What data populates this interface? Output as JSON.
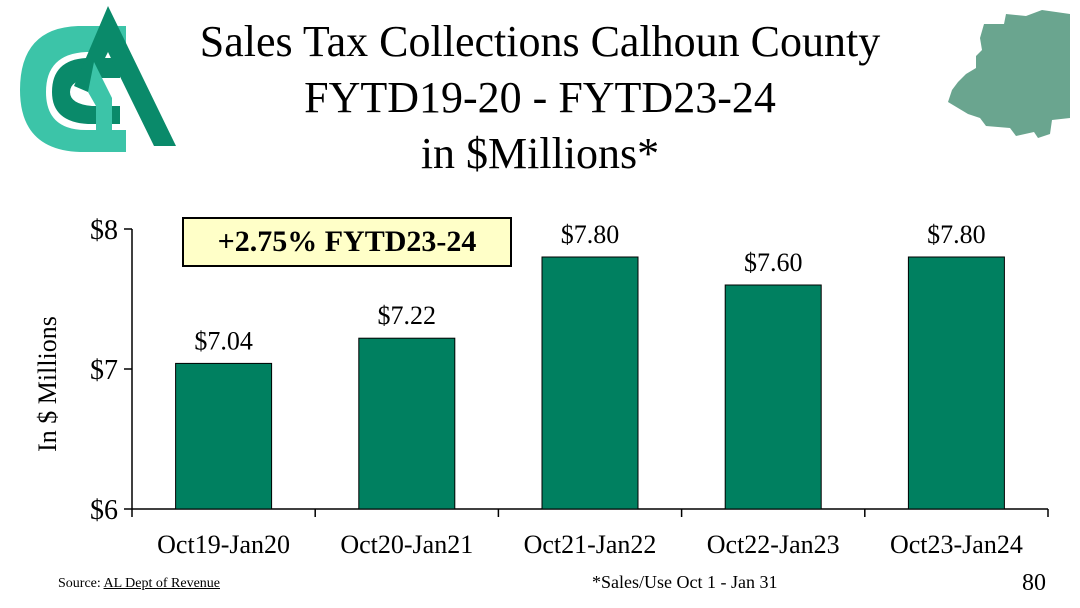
{
  "title": {
    "line1": "Sales Tax Collections Calhoun County",
    "line2": "FYTD19-20 - FYTD23-24",
    "line3": "in $Millions*"
  },
  "callout": "+2.75% FYTD23-24",
  "footer": {
    "source_prefix": "Source: ",
    "source_link": "AL Dept of Revenue",
    "note": "*Sales/Use Oct 1 - Jan 31",
    "page_number": "80"
  },
  "colors": {
    "bar": "#008060",
    "logo_dark": "#0a8a6a",
    "logo_light": "#3cc4a8",
    "county": "#6aa58f",
    "callout_bg": "#ffffc8"
  },
  "icons": [
    "logo-icon",
    "county-map-icon"
  ],
  "chart_data": {
    "type": "bar",
    "categories": [
      "Oct19-Jan20",
      "Oct20-Jan21",
      "Oct21-Jan22",
      "Oct22-Jan23",
      "Oct23-Jan24"
    ],
    "values": [
      7.04,
      7.22,
      7.8,
      7.6,
      7.8
    ],
    "data_labels": [
      "$7.04",
      "$7.22",
      "$7.80",
      "$7.60",
      "$7.80"
    ],
    "ylabel": "In $ Millions",
    "xlabel": "",
    "ylim": [
      6,
      8
    ],
    "yticks": [
      6,
      7,
      8
    ],
    "ytick_labels": [
      "$6",
      "$7",
      "$8"
    ],
    "grid": false,
    "legend": "none"
  }
}
